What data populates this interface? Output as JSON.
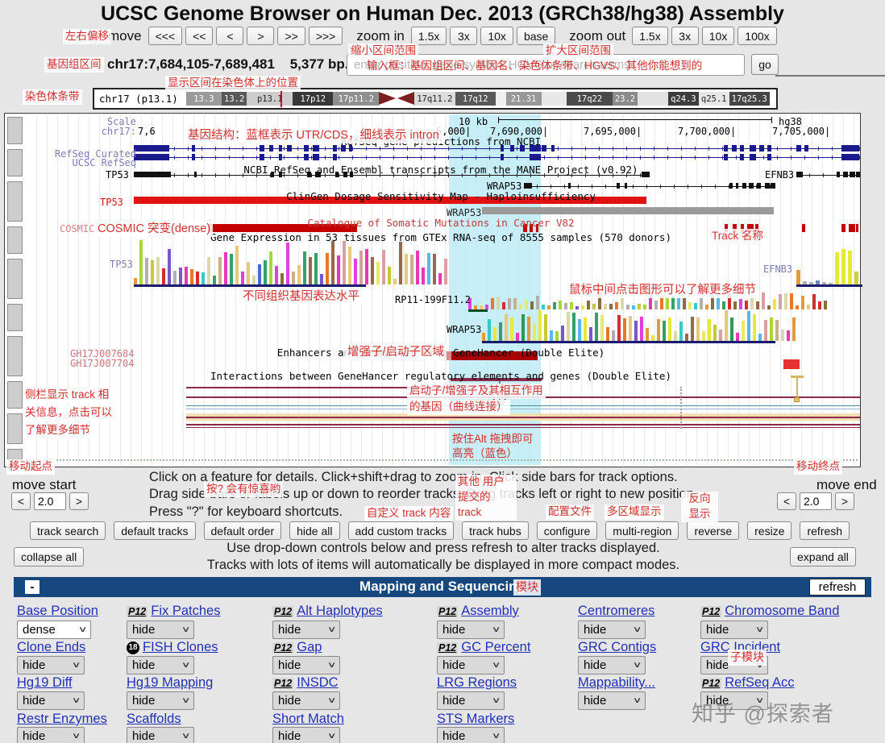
{
  "title": "UCSC Genome Browser on Human Dec. 2013 (GRCh38/hg38) Assembly",
  "nav": {
    "move_label": "move",
    "move_buttons": [
      "<<<",
      "<<",
      "<",
      ">",
      ">>",
      ">>>"
    ],
    "zoom_in_label": "zoom in",
    "zoom_in_buttons": [
      "1.5x",
      "3x",
      "10x",
      "base"
    ],
    "zoom_out_label": "zoom out",
    "zoom_out_buttons": [
      "1.5x",
      "3x",
      "10x",
      "100x"
    ]
  },
  "position": {
    "region": "chr17:7,684,105-7,689,481",
    "size": "5,377 bp.",
    "search_placeholder": "enter position, gene symbol, HGVS or search terms",
    "go_label": "go"
  },
  "ideogram": {
    "chrom_label": "chr17 (p13.1)",
    "bands": [
      {
        "name": "13.3",
        "flex": 7,
        "bg": "#9a9a9a",
        "fg": "#ffffff"
      },
      {
        "name": "13.2",
        "flex": 5,
        "bg": "#585858",
        "fg": "#ffffff"
      },
      {
        "name": "p13.1",
        "flex": 9,
        "bg": "#cccccc",
        "fg": "#222222"
      },
      {
        "name": "17p12",
        "flex": 8,
        "bg": "#383838",
        "fg": "#ffffff"
      },
      {
        "name": "17p11.2",
        "flex": 9,
        "bg": "#8f8f8f",
        "fg": "#ffffff"
      },
      {
        "type": "cen"
      },
      {
        "name": "17q11.2",
        "flex": 8,
        "bg": "#dcdcdc",
        "fg": "#222222"
      },
      {
        "name": "17q12",
        "flex": 8,
        "bg": "#585858",
        "fg": "#ffffff"
      },
      {
        "name": "",
        "flex": 2,
        "bg": "#efefef",
        "fg": "#222222"
      },
      {
        "name": "21.31",
        "flex": 7,
        "bg": "#989898",
        "fg": "#ffffff"
      },
      {
        "name": "",
        "flex": 5,
        "bg": "#e8e8e8",
        "fg": "#222222"
      },
      {
        "name": "17q22",
        "flex": 9,
        "bg": "#4a4a4a",
        "fg": "#ffffff"
      },
      {
        "name": "23.2",
        "flex": 5,
        "bg": "#8a8a8a",
        "fg": "#ffffff"
      },
      {
        "name": "",
        "flex": 6,
        "bg": "#e2e2e2",
        "fg": "#222222"
      },
      {
        "name": "q24.3",
        "flex": 6,
        "bg": "#3c3c3c",
        "fg": "#ffffff"
      },
      {
        "name": "q25.1",
        "flex": 6,
        "bg": "#e6e6e6",
        "fg": "#222222"
      },
      {
        "name": "17q25.3",
        "flex": 8,
        "bg": "#454545",
        "fg": "#ffffff"
      }
    ]
  },
  "browser": {
    "scale_label": "Scale",
    "chrom": "chr17:",
    "ruler": "10 kb",
    "assembly": "hg38",
    "coords": [
      "7,6",
      "5,000|",
      "7,690,000|",
      "7,695,000|",
      "7,700,000|",
      "7,705,000|"
    ],
    "left_labels": {
      "refseq_curated": "RefSeq Curated",
      "ucsc_refseq": "UCSC RefSeq"
    },
    "titles": {
      "refseq": "RefSeq gene predictions from NCBI",
      "mane": "NCBI RefSeq and Ensembl transcripts from the MANE Project (v0.92)",
      "clingen": "ClinGen Dosage Sensitivity Map - Haploinsufficiency",
      "cosmic": "Catalogue of Somatic Mutations in Cancer V82",
      "gtex": "Gene Expression in 53 tissues from GTEx RNA-seq of 8555 samples (570 donors)",
      "genehancer": "Enhancers and promoters from GeneHancer (Double Elite)",
      "interactions": "Interactions between GeneHancer regulatory elements and genes (Double Elite)"
    },
    "genes": {
      "tp53": "TP53",
      "efnb3": "EFNB3",
      "wrap53": "WRAP53",
      "rp11": "RP11-199F11.2",
      "cosmic": "COSMIC"
    },
    "gh": [
      "GH17J007684",
      "GH17J007704"
    ],
    "palette": [
      "#e8c87a",
      "#e09c3c",
      "#8a6d3b",
      "#d03030",
      "#e8e83a",
      "#c8c83a",
      "#38c8c8",
      "#e040e0",
      "#b0b0b0",
      "#4868d8",
      "#2e9858",
      "#7858c8",
      "#d8a0a0",
      "#c8b088",
      "#e8e86a",
      "#a8d838",
      "#d8d8a8",
      "#58b8e8",
      "#986848",
      "#e87828",
      "#35a06a",
      "#e838b8"
    ],
    "colors": {
      "gene_blue": "#1a1a8c",
      "mane_black": "#111111",
      "clingen_red": "#e11212",
      "clingen_gray": "#9a9a9a",
      "cosmic_red": "#c40000",
      "maroon": "#8b2a4a",
      "highlight": "#b5e8f4",
      "baseline_navy": "#1a1a6e",
      "enhancer_dark_red": "#a80000",
      "enhancer_red": "#e63232"
    }
  },
  "image_help": {
    "line1": "Click on a feature for details. Click+shift+drag to zoom in. Click side bars for track options.",
    "line2": "Drag side bars or labels up or down to reorder tracks. Drag tracks left or right to new position.",
    "line3": "Press \"?\" for keyboard shortcuts."
  },
  "move_start": {
    "label": "move start",
    "dec": "<",
    "value": "2.0",
    "inc": ">"
  },
  "move_end": {
    "label": "move end",
    "dec": "<",
    "value": "2.0",
    "inc": ">"
  },
  "toolbar": {
    "buttons": [
      "track search",
      "default tracks",
      "default order",
      "hide all",
      "add custom tracks",
      "track hubs",
      "configure",
      "multi-region",
      "reverse",
      "resize",
      "refresh"
    ]
  },
  "tracks_note": {
    "collapse": "collapse all",
    "expand": "expand all",
    "line1": "Use drop-down controls below and press refresh to alter tracks displayed.",
    "line2": "Tracks with lots of items will automatically be displayed in more compact modes."
  },
  "section": {
    "collapse_btn": "-",
    "title": "Mapping and Sequencing",
    "refresh": "refresh"
  },
  "grid": {
    "rows": [
      [
        {
          "label": "Base Position",
          "value": "dense",
          "white": true
        },
        {
          "badge": "P12",
          "label": "Fix Patches",
          "value": "hide"
        },
        {
          "badge": "P12",
          "label": "Alt Haplotypes",
          "value": "hide"
        },
        {
          "badge": "P12",
          "label": "Assembly",
          "value": "hide"
        },
        {
          "label": "Centromeres",
          "value": "hide"
        },
        {
          "badge": "P12",
          "label": "Chromosome Band",
          "value": "hide"
        }
      ],
      [
        {
          "label": "Clone Ends",
          "value": "hide"
        },
        {
          "badge": "18",
          "badge_circle": true,
          "label": "FISH Clones",
          "value": "hide"
        },
        {
          "badge": "P12",
          "label": "Gap",
          "value": "hide"
        },
        {
          "badge": "P12",
          "label": "GC Percent",
          "value": "hide"
        },
        {
          "label": "GRC Contigs",
          "value": "hide"
        },
        {
          "label": "GRC Incident",
          "value": "hide"
        }
      ],
      [
        {
          "label": "Hg19 Diff",
          "value": "hide"
        },
        {
          "label": "Hg19 Mapping",
          "value": "hide"
        },
        {
          "badge": "P12",
          "label": "INSDC",
          "value": "hide"
        },
        {
          "label": "LRG Regions",
          "value": "hide"
        },
        {
          "label": "Mappability...",
          "value": "hide"
        },
        {
          "badge": "P12",
          "label": "RefSeq Acc",
          "value": "hide"
        }
      ],
      [
        {
          "label": "Restr Enzymes",
          "value": "hide"
        },
        {
          "label": "Scaffolds",
          "value": "hide"
        },
        {
          "label": "Short Match",
          "value": "hide"
        },
        {
          "label": "STS Markers",
          "value": "hide"
        }
      ]
    ]
  },
  "annotations": {
    "pan": "左右偏移",
    "zoom_in": "缩小区间范围",
    "zoom_out": "扩大区间范围",
    "region": "基因组区间",
    "search_box": "输入框：基因组区间、基因名、染色体条带、HGVS、其他你能想到的",
    "chrom_band": "染色体条带",
    "chrom_pos": "显示区间在染色体上的位置",
    "gene_structure": "基因结构：蓝框表示 UTR/CDS，细线表示 intron",
    "cosmic": "COSMIC 突变(dense)",
    "track_name": "Track 名称",
    "gtex": "不同组织基因表达水平",
    "middle_click": "鼠标中间点击图形可以了解更多细节",
    "enhancer": "增强子/启动子区域",
    "inter1": "启动子/增强子及其相互作用",
    "inter2": "的基因（曲线连接）",
    "side1": "侧栏显示 track 相",
    "side2": "关信息，点击可以",
    "side3": "了解更多细节",
    "alt1": "按住Alt 拖拽即可",
    "alt2": "高亮（蓝色）",
    "move_start": "移动起点",
    "move_end": "移动终点",
    "question": "按? 会有惊喜哟",
    "other1": "其他 用户",
    "other2": "提交的",
    "other3": "track",
    "custom": "自定义 track 内容",
    "config": "配置文件",
    "multi": "多区域显示",
    "rev1": "反向",
    "rev2": "显示",
    "module": "模块",
    "submodule": "子模块"
  },
  "watermark": "知乎 @探索者"
}
